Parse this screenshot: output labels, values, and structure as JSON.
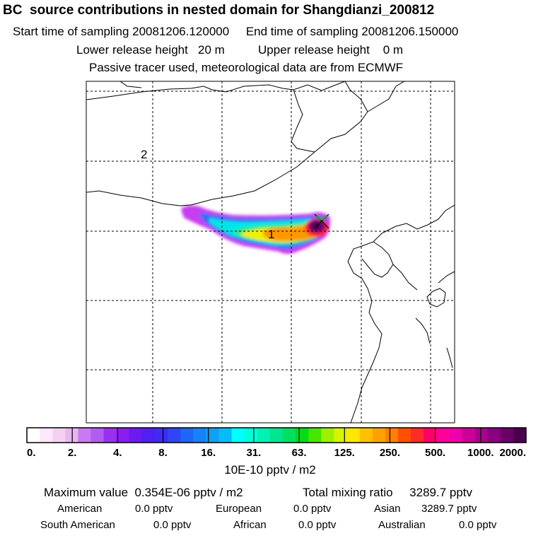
{
  "header": {
    "title": "BC  source contributions in nested domain for Shangdianzi_200812",
    "line1": "Start time of sampling 20081206.120000     End time of sampling 20081206.150000",
    "line2": "Lower release height   20 m          Upper release height    0 m",
    "line3": "Passive tracer used, meteorological data are from ECMWF"
  },
  "map": {
    "grid_labels": [
      "2",
      "1"
    ]
  },
  "colorbar": {
    "tick_labels": [
      "0.",
      "2.",
      "4.",
      "8.",
      "16.",
      "31.",
      "63.",
      "125.",
      "250.",
      "500.",
      "1000.",
      "2000."
    ],
    "unit": "10E-10 pptv / m2",
    "colors": [
      "#ffffff",
      "#fbe8fb",
      "#f4d0f4",
      "#eab6ef",
      "#c87af2",
      "#b35cf0",
      "#9a2ff0",
      "#8a1cf0",
      "#6a1cf0",
      "#5020f0",
      "#3d2cf3",
      "#2f45f6",
      "#1e66f8",
      "#1683f8",
      "#0ea1f8",
      "#06bdf8",
      "#00ffff",
      "#00ffd8",
      "#00f2b0",
      "#00e590",
      "#00e05e",
      "#00dc18",
      "#46e600",
      "#9ef000",
      "#d8f400",
      "#ffe600",
      "#ffc000",
      "#ffa200",
      "#ff8000",
      "#ff5000",
      "#ff2a2a",
      "#ff0066",
      "#ff0099",
      "#ee00aa",
      "#cc0099",
      "#a8008c",
      "#8a0080",
      "#6a0066",
      "#4a004a"
    ],
    "plume_colors": {
      "magenta": "#c83cf0",
      "blue": "#2f6ff8",
      "cyan": "#00e6e6",
      "green": "#3ce26a",
      "yellow": "#f2f000",
      "orange": "#ff9800",
      "red": "#ff2020",
      "purple": "#7a007a",
      "dark": "#3a0040"
    }
  },
  "stats": {
    "max_label": "Maximum value  0.354E-06 pptv / m2",
    "total_label": "Total mixing ratio     3289.7 pptv",
    "american_label": "American",
    "american_value": "0.0 pptv",
    "european_label": "European",
    "european_value": "0.0 pptv",
    "asian_label": "Asian",
    "asian_value": "3289.7 pptv",
    "south_american_label": "South American",
    "south_american_value": "0.0 pptv",
    "african_label": "African",
    "african_value": "0.0 pptv",
    "australian_label": "Australian",
    "australian_value": "0.0 pptv"
  }
}
